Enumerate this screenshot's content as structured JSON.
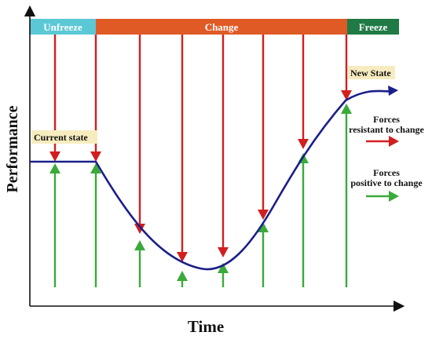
{
  "phases": {
    "unfreeze": {
      "label": "Unfreeze",
      "color": "#5bc8d6"
    },
    "change": {
      "label": "Change",
      "color": "#e05a26"
    },
    "freeze": {
      "label": "Freeze",
      "color": "#1f7a45"
    }
  },
  "axes": {
    "y_label": "Performance",
    "x_label": "Time"
  },
  "annotations": {
    "current_state": "Current state",
    "new_state": "New State",
    "label_bg": "#f7ecbf"
  },
  "legend": {
    "resistant": {
      "line1": "Forces",
      "line2": "resistant to change",
      "color": "#d11f1f"
    },
    "positive": {
      "line1": "Forces",
      "line2": "positive to change",
      "color": "#3aaa3a"
    }
  },
  "curve_color": "#1b1f8a"
}
